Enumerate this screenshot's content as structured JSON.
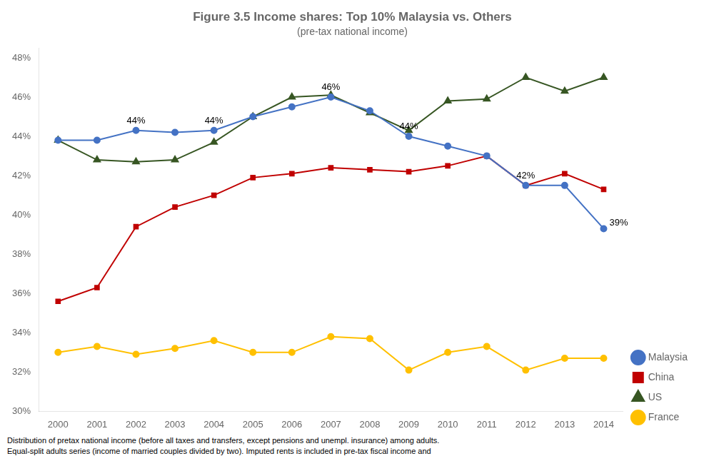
{
  "chart_data": {
    "type": "line",
    "title": "Figure 3.5 Income shares: Top 10% Malaysia vs. Others",
    "subtitle": "(pre-tax national income)",
    "footer": [
      "Distribution of pretax national income (before all taxes and transfers, except pensions and unempl. insurance) among adults.",
      "Equal-split adults series (income of married couples divided by two). Imputed rents is included in pre-tax fiscal income and"
    ],
    "x": [
      2000,
      2001,
      2002,
      2003,
      2004,
      2005,
      2006,
      2007,
      2008,
      2009,
      2010,
      2011,
      2012,
      2013,
      2014
    ],
    "series": [
      {
        "name": "Malaysia",
        "color": "#4472C4",
        "marker": "circle",
        "values": [
          0.438,
          0.438,
          0.443,
          0.442,
          0.443,
          0.45,
          0.455,
          0.46,
          0.453,
          0.44,
          0.435,
          0.43,
          0.415,
          0.415,
          0.393
        ]
      },
      {
        "name": "China",
        "color": "#C00000",
        "marker": "square",
        "values": [
          0.356,
          0.363,
          0.394,
          0.404,
          0.41,
          0.419,
          0.421,
          0.424,
          0.423,
          0.422,
          0.425,
          0.43,
          0.415,
          0.421,
          0.413
        ]
      },
      {
        "name": "US",
        "color": "#375623",
        "marker": "triangle",
        "values": [
          0.438,
          0.428,
          0.427,
          0.428,
          0.437,
          0.45,
          0.46,
          0.461,
          0.452,
          0.443,
          0.458,
          0.459,
          0.47,
          0.463,
          0.47
        ]
      },
      {
        "name": "France",
        "color": "#FFC000",
        "marker": "circle",
        "values": [
          0.33,
          0.333,
          0.329,
          0.332,
          0.336,
          0.33,
          0.33,
          0.338,
          0.337,
          0.321,
          0.33,
          0.333,
          0.321,
          0.327,
          0.327
        ]
      }
    ],
    "annotations": [
      {
        "x": 2002,
        "y": 0.443,
        "text": "44%"
      },
      {
        "x": 2004,
        "y": 0.443,
        "text": "44%"
      },
      {
        "x": 2007,
        "y": 0.46,
        "text": "46%"
      },
      {
        "x": 2009,
        "y": 0.44,
        "text": "44%"
      },
      {
        "x": 2012,
        "y": 0.415,
        "text": "42%"
      },
      {
        "x": 2014,
        "y": 0.393,
        "text": "39%"
      }
    ],
    "xlim": [
      1999.5,
      2014.5
    ],
    "xticks": [
      2000,
      2001,
      2002,
      2003,
      2004,
      2005,
      2006,
      2007,
      2008,
      2009,
      2010,
      2011,
      2012,
      2013,
      2014
    ],
    "ylim": [
      0.3,
      0.485
    ],
    "yticks": [
      {
        "value": 0.3,
        "label": "30%"
      },
      {
        "value": 0.32,
        "label": "32%"
      },
      {
        "value": 0.34,
        "label": "34%"
      },
      {
        "value": 0.36,
        "label": "36%"
      },
      {
        "value": 0.38,
        "label": "38%"
      },
      {
        "value": 0.4,
        "label": "40%"
      },
      {
        "value": 0.42,
        "label": "42%"
      },
      {
        "value": 0.44,
        "label": "44%"
      },
      {
        "value": 0.46,
        "label": "46%"
      },
      {
        "value": 0.48,
        "label": "48%"
      }
    ],
    "grid": false,
    "legend": "lower right"
  }
}
